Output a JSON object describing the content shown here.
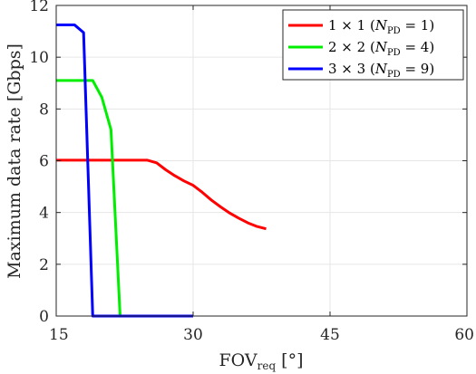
{
  "chart_data": {
    "type": "line",
    "xlabel": "FOV",
    "xlabel_sub": "req",
    "xlabel_unit": "[°]",
    "ylabel": "Maximum data rate [Gbps]",
    "xlim": [
      15,
      60
    ],
    "ylim": [
      0,
      12
    ],
    "xticks": [
      15,
      30,
      45,
      60
    ],
    "yticks": [
      0,
      2,
      4,
      6,
      8,
      10,
      12
    ],
    "xtick_labels": [
      "15",
      "30",
      "45",
      "60"
    ],
    "ytick_labels": [
      "0",
      "2",
      "4",
      "6",
      "8",
      "10",
      "12"
    ],
    "grid": true,
    "legend_position": "top-right",
    "series": [
      {
        "name": "1 × 1 (N_PD = 1)",
        "legend_main": "1 × 1 (",
        "legend_var": "N",
        "legend_sub": "PD",
        "legend_tail": " = 1)",
        "color": "#ff0000",
        "x": [
          15,
          20,
          25,
          26,
          27,
          28,
          29,
          30,
          31,
          32,
          33,
          34,
          35,
          36,
          37,
          38
        ],
        "y": [
          6.02,
          6.02,
          6.02,
          5.92,
          5.65,
          5.42,
          5.22,
          5.05,
          4.78,
          4.48,
          4.22,
          3.98,
          3.78,
          3.6,
          3.46,
          3.37
        ]
      },
      {
        "name": "2 × 2 (N_PD = 4)",
        "legend_main": "2 × 2 (",
        "legend_var": "N",
        "legend_sub": "PD",
        "legend_tail": " = 4)",
        "color": "#00ee00",
        "x": [
          15,
          19,
          20,
          21,
          22,
          30
        ],
        "y": [
          9.1,
          9.1,
          8.45,
          7.2,
          0,
          0
        ]
      },
      {
        "name": "3 × 3 (N_PD = 9)",
        "legend_main": "3 × 3 (",
        "legend_var": "N",
        "legend_sub": "PD",
        "legend_tail": " = 9)",
        "color": "#0000ff",
        "x": [
          15,
          17,
          18,
          19,
          30
        ],
        "y": [
          11.25,
          11.25,
          10.95,
          0,
          0
        ]
      }
    ]
  }
}
